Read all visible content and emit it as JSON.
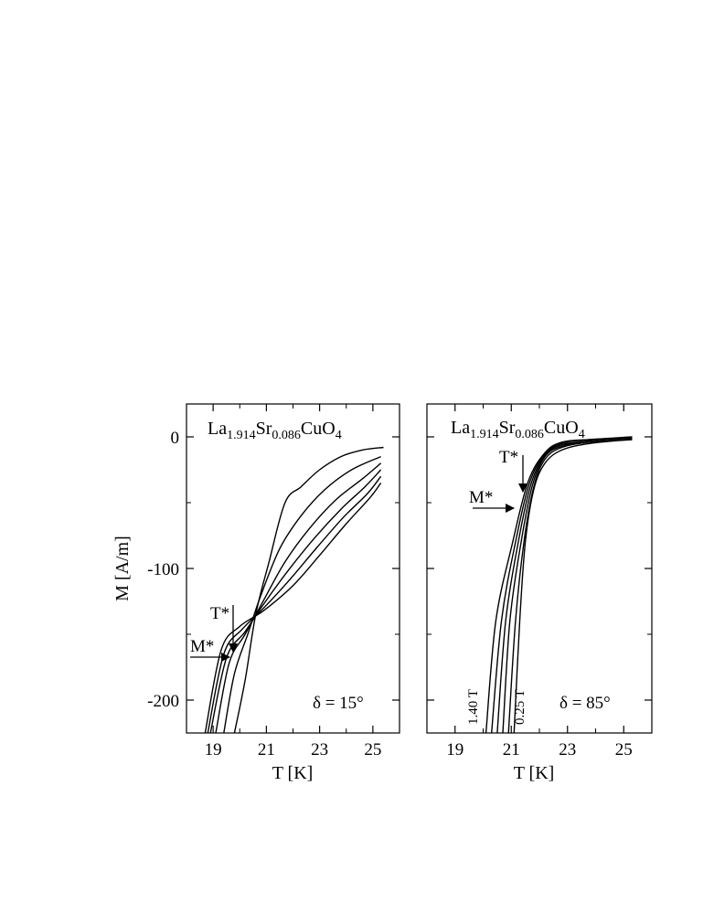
{
  "chart_data": [
    {
      "type": "line",
      "title": {
        "base1": "La",
        "sub1": "1.914",
        "base2": "Sr",
        "sub2": "0.086",
        "base3": "CuO",
        "sub3": "4"
      },
      "xlabel": "T [K]",
      "ylabel": "M [A/m]",
      "xlim": [
        18,
        26
      ],
      "ylim": [
        -225,
        25
      ],
      "xticks": [
        19,
        21,
        23,
        25
      ],
      "yticks": [
        0,
        -100,
        -200
      ],
      "annotation": "δ = 15°",
      "marker_t": {
        "label": "T*",
        "x": 19.75,
        "y": -160
      },
      "marker_m": {
        "label": "M*",
        "x": 19.75,
        "y": -168
      },
      "series": [
        {
          "values": [
            [
              19.8,
              -225
            ],
            [
              20.2,
              -185
            ],
            [
              20.6,
              -135
            ],
            [
              21.1,
              -95
            ],
            [
              21.7,
              -50
            ],
            [
              22.3,
              -38
            ],
            [
              23.0,
              -25
            ],
            [
              23.8,
              -15
            ],
            [
              24.6,
              -10
            ],
            [
              25.4,
              -8
            ]
          ]
        },
        {
          "values": [
            [
              19.4,
              -225
            ],
            [
              19.8,
              -180
            ],
            [
              20.3,
              -150
            ],
            [
              20.8,
              -120
            ],
            [
              21.5,
              -85
            ],
            [
              22.3,
              -60
            ],
            [
              23.2,
              -40
            ],
            [
              24.2,
              -25
            ],
            [
              25.3,
              -15
            ]
          ]
        },
        {
          "values": [
            [
              19.1,
              -225
            ],
            [
              19.6,
              -172
            ],
            [
              20.2,
              -150
            ],
            [
              20.9,
              -124
            ],
            [
              21.7,
              -95
            ],
            [
              22.6,
              -70
            ],
            [
              23.6,
              -48
            ],
            [
              24.6,
              -32
            ],
            [
              25.3,
              -20
            ]
          ]
        },
        {
          "values": [
            [
              18.9,
              -225
            ],
            [
              19.5,
              -168
            ],
            [
              20.2,
              -148
            ],
            [
              20.9,
              -127
            ],
            [
              21.8,
              -102
            ],
            [
              22.8,
              -77
            ],
            [
              23.8,
              -55
            ],
            [
              24.7,
              -38
            ],
            [
              25.3,
              -25
            ]
          ]
        },
        {
          "values": [
            [
              18.8,
              -225
            ],
            [
              19.4,
              -165
            ],
            [
              20.1,
              -146
            ],
            [
              20.9,
              -130
            ],
            [
              21.9,
              -108
            ],
            [
              22.9,
              -84
            ],
            [
              23.9,
              -61
            ],
            [
              24.8,
              -43
            ],
            [
              25.3,
              -30
            ]
          ]
        },
        {
          "values": [
            [
              18.7,
              -225
            ],
            [
              19.3,
              -162
            ],
            [
              20.0,
              -144
            ],
            [
              20.9,
              -132
            ],
            [
              22.0,
              -113
            ],
            [
              23.0,
              -90
            ],
            [
              24.0,
              -66
            ],
            [
              24.9,
              -46
            ],
            [
              25.3,
              -35
            ]
          ]
        }
      ]
    },
    {
      "type": "line",
      "title": {
        "base1": "La",
        "sub1": "1.914",
        "base2": "Sr",
        "sub2": "0.086",
        "base3": "CuO",
        "sub3": "4"
      },
      "xlabel": "T [K]",
      "ylabel": "",
      "xlim": [
        18,
        26
      ],
      "ylim": [
        -225,
        25
      ],
      "xticks": [
        19,
        21,
        23,
        25
      ],
      "yticks": [
        0,
        -100,
        -200
      ],
      "annotation": "δ = 85°",
      "marker_t": {
        "label": "T*",
        "x": 21.55,
        "y": -42
      },
      "marker_m": {
        "label": "M*",
        "x": 21.35,
        "y": -53
      },
      "field_labels": {
        "high": "1.40 T",
        "low": "0.25 T"
      },
      "series": [
        {
          "values": [
            [
              21.1,
              -225
            ],
            [
              21.3,
              -140
            ],
            [
              21.5,
              -80
            ],
            [
              21.8,
              -40
            ],
            [
              22.2,
              -20
            ],
            [
              22.8,
              -10
            ],
            [
              23.8,
              -5
            ],
            [
              25.3,
              -2
            ]
          ]
        },
        {
          "values": [
            [
              20.9,
              -225
            ],
            [
              21.15,
              -140
            ],
            [
              21.45,
              -80
            ],
            [
              21.8,
              -38
            ],
            [
              22.2,
              -17
            ],
            [
              22.8,
              -8
            ],
            [
              23.8,
              -4
            ],
            [
              25.3,
              -2
            ]
          ]
        },
        {
          "values": [
            [
              20.7,
              -225
            ],
            [
              20.95,
              -140
            ],
            [
              21.35,
              -80
            ],
            [
              21.75,
              -37
            ],
            [
              22.2,
              -15
            ],
            [
              22.8,
              -7
            ],
            [
              23.8,
              -3
            ],
            [
              25.3,
              -1
            ]
          ]
        },
        {
          "values": [
            [
              20.5,
              -225
            ],
            [
              20.8,
              -140
            ],
            [
              21.25,
              -80
            ],
            [
              21.7,
              -36
            ],
            [
              22.2,
              -14
            ],
            [
              22.8,
              -6
            ],
            [
              23.8,
              -3
            ],
            [
              25.3,
              -1
            ]
          ]
        },
        {
          "values": [
            [
              20.3,
              -225
            ],
            [
              20.65,
              -140
            ],
            [
              21.15,
              -80
            ],
            [
              21.65,
              -35
            ],
            [
              22.2,
              -13
            ],
            [
              22.8,
              -5
            ],
            [
              23.8,
              -2
            ],
            [
              25.3,
              -1
            ]
          ]
        },
        {
          "values": [
            [
              20.1,
              -225
            ],
            [
              20.45,
              -140
            ],
            [
              21.05,
              -80
            ],
            [
              21.6,
              -34
            ],
            [
              22.2,
              -12
            ],
            [
              22.8,
              -4
            ],
            [
              23.8,
              -2
            ],
            [
              25.3,
              0
            ]
          ]
        }
      ]
    }
  ]
}
